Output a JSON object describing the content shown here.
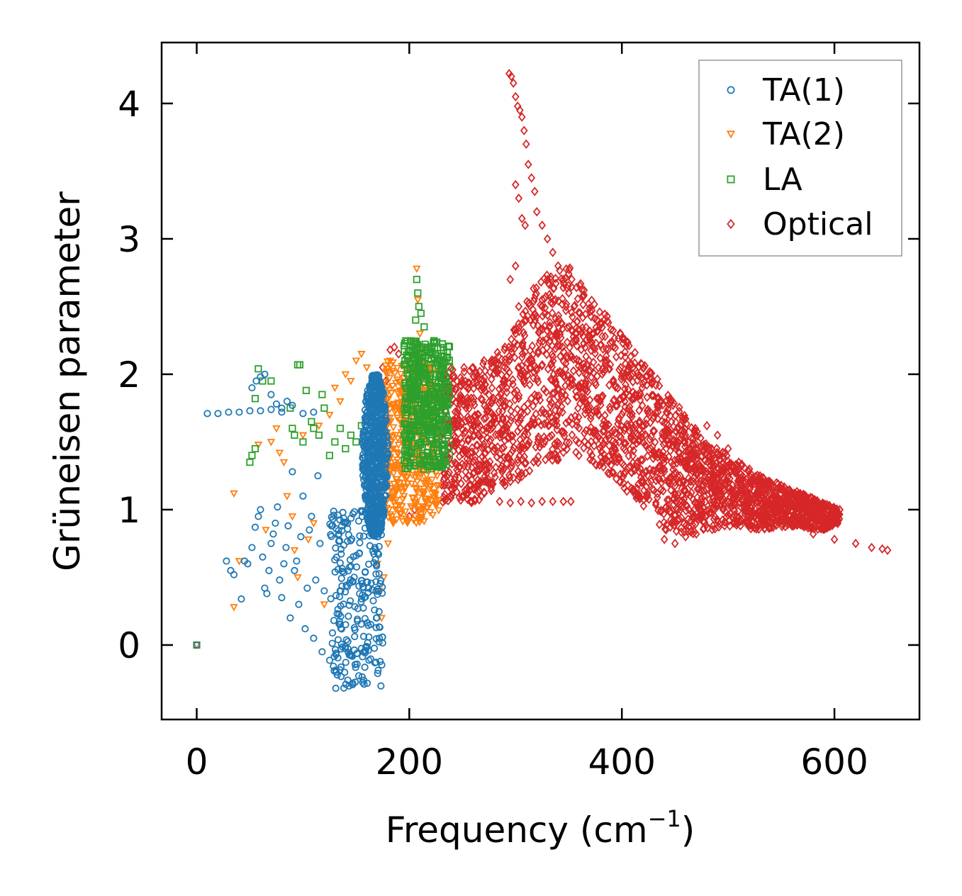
{
  "chart_data": {
    "type": "scatter",
    "title": "",
    "xlabel": "Frequency (cm",
    "xlabel_sup": "−1",
    "xlabel_close": ")",
    "ylabel": "Grüneisen parameter",
    "xlim": [
      -33,
      680
    ],
    "ylim": [
      -0.55,
      4.45
    ],
    "xticks": [
      0,
      200,
      400,
      600
    ],
    "xtick_labels": [
      "0",
      "200",
      "400",
      "600"
    ],
    "yticks": [
      0,
      1,
      2,
      3,
      4
    ],
    "ytick_labels": [
      "0",
      "1",
      "2",
      "3",
      "4"
    ],
    "grid": false,
    "legend_position": "top-right",
    "series": [
      {
        "name": "TA(1)",
        "marker": "circle",
        "color": "#1f77b4",
        "points": [
          [
            0,
            0
          ],
          [
            10,
            1.71
          ],
          [
            20,
            1.71
          ],
          [
            30,
            1.72
          ],
          [
            40,
            1.72
          ],
          [
            50,
            1.73
          ],
          [
            60,
            1.73
          ],
          [
            70,
            1.74
          ],
          [
            80,
            1.75
          ],
          [
            90,
            1.77
          ],
          [
            100,
            1.71
          ],
          [
            110,
            1.72
          ],
          [
            28,
            0.62
          ],
          [
            32,
            0.55
          ],
          [
            35,
            0.52
          ],
          [
            42,
            0.34
          ],
          [
            45,
            0.62
          ],
          [
            48,
            0.6
          ],
          [
            52,
            0.72
          ],
          [
            55,
            0.87
          ],
          [
            58,
            0.95
          ],
          [
            60,
            1.0
          ],
          [
            62,
            0.65
          ],
          [
            64,
            0.42
          ],
          [
            66,
            0.38
          ],
          [
            68,
            0.55
          ],
          [
            70,
            0.75
          ],
          [
            72,
            0.82
          ],
          [
            74,
            0.9
          ],
          [
            76,
            1.02
          ],
          [
            78,
            0.48
          ],
          [
            80,
            0.35
          ],
          [
            82,
            0.6
          ],
          [
            84,
            0.72
          ],
          [
            86,
            0.88
          ],
          [
            88,
            0.2
          ],
          [
            90,
            1.28
          ],
          [
            92,
            0.55
          ],
          [
            94,
            0.62
          ],
          [
            96,
            0.3
          ],
          [
            98,
            0.8
          ],
          [
            100,
            1.1
          ],
          [
            102,
            0.12
          ],
          [
            104,
            0.42
          ],
          [
            106,
            0.85
          ],
          [
            108,
            0.95
          ],
          [
            110,
            0.05
          ],
          [
            112,
            0.48
          ],
          [
            114,
            1.25
          ],
          [
            116,
            0.75
          ],
          [
            118,
            -0.05
          ],
          [
            120,
            0.4
          ],
          [
            52,
            1.9
          ],
          [
            56,
            1.95
          ],
          [
            60,
            1.98
          ],
          [
            64,
            2.0
          ],
          [
            70,
            1.85
          ],
          [
            75,
            1.78
          ],
          [
            80,
            1.72
          ],
          [
            85,
            1.8
          ]
        ],
        "core": {
          "x_center": 168,
          "x_halfwidth": 12,
          "y_min": 0.8,
          "y_max": 2.0
        },
        "lower_band": {
          "x_min": 125,
          "x_max": 175,
          "y_min": -0.32,
          "y_max": 1.0
        }
      },
      {
        "name": "TA(2)",
        "marker": "triangle_down",
        "color": "#ff7f0e",
        "points": [
          [
            0,
            0
          ],
          [
            35,
            1.12
          ],
          [
            35,
            0.28
          ],
          [
            40,
            0.62
          ],
          [
            58,
            1.48
          ],
          [
            65,
            0.85
          ],
          [
            70,
            1.5
          ],
          [
            75,
            1.6
          ],
          [
            78,
            1.42
          ],
          [
            82,
            1.35
          ],
          [
            85,
            1.1
          ],
          [
            90,
            0.95
          ],
          [
            92,
            0.7
          ],
          [
            95,
            0.5
          ],
          [
            100,
            1.55
          ],
          [
            105,
            0.78
          ],
          [
            110,
            0.9
          ],
          [
            115,
            1.62
          ],
          [
            120,
            0.3
          ],
          [
            125,
            1.7
          ],
          [
            130,
            1.9
          ],
          [
            135,
            1.8
          ],
          [
            140,
            2.0
          ],
          [
            145,
            1.95
          ],
          [
            150,
            2.1
          ],
          [
            155,
            2.15
          ],
          [
            160,
            2.05
          ],
          [
            165,
            1.85
          ],
          [
            170,
            0.6
          ],
          [
            172,
            0.4
          ],
          [
            174,
            0.2
          ],
          [
            176,
            0.5
          ],
          [
            180,
            0.75
          ],
          [
            185,
            0.9
          ],
          [
            190,
            1.0
          ],
          [
            195,
            1.1
          ],
          [
            207,
            2.78
          ],
          [
            208,
            2.55
          ],
          [
            210,
            2.3
          ],
          [
            212,
            2.2
          ],
          [
            215,
            1.9
          ]
        ],
        "core": {
          "x_min": 175,
          "x_max": 228,
          "y_min": 0.9,
          "y_max": 2.1
        }
      },
      {
        "name": "LA",
        "marker": "square",
        "color": "#2ca02c",
        "points": [
          [
            0,
            0
          ],
          [
            50,
            1.35
          ],
          [
            52,
            1.4
          ],
          [
            55,
            1.45
          ],
          [
            55,
            1.82
          ],
          [
            58,
            2.04
          ],
          [
            62,
            1.95
          ],
          [
            70,
            1.95
          ],
          [
            88,
            1.75
          ],
          [
            90,
            1.6
          ],
          [
            92,
            1.55
          ],
          [
            95,
            2.07
          ],
          [
            97,
            2.07
          ],
          [
            100,
            1.5
          ],
          [
            103,
            1.88
          ],
          [
            108,
            1.65
          ],
          [
            110,
            1.6
          ],
          [
            115,
            1.55
          ],
          [
            118,
            1.85
          ],
          [
            120,
            1.75
          ],
          [
            125,
            1.4
          ],
          [
            130,
            1.5
          ],
          [
            135,
            1.6
          ],
          [
            140,
            1.45
          ],
          [
            145,
            1.55
          ],
          [
            150,
            1.5
          ],
          [
            155,
            1.62
          ],
          [
            160,
            1.55
          ],
          [
            205,
            2.1
          ],
          [
            206,
            2.4
          ],
          [
            207,
            2.7
          ],
          [
            208,
            2.6
          ],
          [
            209,
            2.5
          ],
          [
            211,
            2.45
          ],
          [
            214,
            2.35
          ],
          [
            218,
            2.2
          ],
          [
            222,
            2.15
          ]
        ],
        "core": {
          "x_min": 195,
          "x_max": 238,
          "y_min": 1.3,
          "y_max": 2.25
        }
      },
      {
        "name": "Optical",
        "marker": "diamond",
        "color": "#d62728",
        "points": [
          [
            182,
            2.18
          ],
          [
            186,
            2.2
          ],
          [
            190,
            2.15
          ],
          [
            175,
            2.05
          ],
          [
            178,
            1.95
          ],
          [
            200,
            0.95
          ],
          [
            205,
            1.0
          ],
          [
            285,
            1.06
          ],
          [
            295,
            1.05
          ],
          [
            305,
            1.06
          ],
          [
            315,
            1.05
          ],
          [
            325,
            1.06
          ],
          [
            335,
            1.06
          ],
          [
            345,
            1.06
          ],
          [
            352,
            1.06
          ],
          [
            294,
            4.22
          ],
          [
            296,
            4.2
          ],
          [
            298,
            4.15
          ],
          [
            300,
            4.05
          ],
          [
            302,
            3.98
          ],
          [
            304,
            3.95
          ],
          [
            306,
            3.9
          ],
          [
            308,
            3.8
          ],
          [
            310,
            3.7
          ],
          [
            312,
            3.55
          ],
          [
            315,
            3.45
          ],
          [
            318,
            3.35
          ],
          [
            300,
            3.4
          ],
          [
            303,
            3.3
          ],
          [
            306,
            3.15
          ],
          [
            309,
            3.1
          ],
          [
            320,
            3.2
          ],
          [
            325,
            3.1
          ],
          [
            330,
            3.0
          ],
          [
            335,
            2.9
          ],
          [
            340,
            2.8
          ],
          [
            345,
            2.7
          ],
          [
            350,
            2.6
          ],
          [
            355,
            2.5
          ],
          [
            260,
            2.05
          ],
          [
            270,
            1.95
          ],
          [
            280,
            2.1
          ],
          [
            290,
            2.2
          ],
          [
            300,
            2.3
          ],
          [
            310,
            2.4
          ],
          [
            295,
            2.7
          ],
          [
            300,
            2.8
          ],
          [
            303,
            2.5
          ],
          [
            480,
            1.62
          ],
          [
            490,
            1.55
          ],
          [
            500,
            1.45
          ],
          [
            510,
            1.35
          ],
          [
            520,
            1.3
          ],
          [
            530,
            1.25
          ],
          [
            540,
            1.2
          ],
          [
            550,
            1.15
          ],
          [
            560,
            1.12
          ],
          [
            570,
            1.08
          ],
          [
            580,
            1.05
          ],
          [
            590,
            1.02
          ],
          [
            600,
            1.0
          ],
          [
            605,
            1.0
          ],
          [
            560,
            0.88
          ],
          [
            580,
            0.82
          ],
          [
            600,
            0.78
          ],
          [
            620,
            0.75
          ],
          [
            635,
            0.72
          ],
          [
            645,
            0.71
          ],
          [
            650,
            0.7
          ],
          [
            440,
            0.78
          ],
          [
            450,
            0.75
          ],
          [
            460,
            0.8
          ],
          [
            470,
            0.82
          ]
        ],
        "envelope": [
          [
            230,
            1.05,
            2.05
          ],
          [
            260,
            1.05,
            2.05
          ],
          [
            290,
            1.15,
            2.2
          ],
          [
            320,
            1.3,
            2.7
          ],
          [
            350,
            1.4,
            2.8
          ],
          [
            380,
            1.3,
            2.5
          ],
          [
            410,
            1.1,
            2.2
          ],
          [
            440,
            0.85,
            1.9
          ],
          [
            470,
            0.82,
            1.6
          ],
          [
            500,
            0.88,
            1.4
          ],
          [
            530,
            0.85,
            1.25
          ],
          [
            560,
            0.88,
            1.15
          ],
          [
            590,
            0.85,
            1.05
          ],
          [
            605,
            0.9,
            1.0
          ]
        ]
      }
    ]
  }
}
